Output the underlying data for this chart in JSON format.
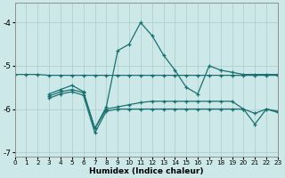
{
  "xlabel": "Humidex (Indice chaleur)",
  "ylabel": "",
  "bg_color": "#cce8e8",
  "grid_color": "#b0d0d0",
  "line_color": "#1a7070",
  "xlim": [
    0,
    23
  ],
  "ylim": [
    -7.1,
    -3.55
  ],
  "yticks": [
    -7,
    -6,
    -5,
    -4
  ],
  "xticks": [
    0,
    1,
    2,
    3,
    4,
    5,
    6,
    7,
    8,
    9,
    10,
    11,
    12,
    13,
    14,
    15,
    16,
    17,
    18,
    19,
    20,
    21,
    22,
    23
  ],
  "series": [
    {
      "x": [
        0,
        1,
        2,
        3,
        4,
        5,
        6,
        7,
        8,
        9,
        10,
        11,
        12,
        13,
        14,
        15,
        16,
        17,
        18,
        19,
        20,
        21,
        22,
        23
      ],
      "y": [
        -5.2,
        -5.2,
        -5.2,
        -5.22,
        -5.22,
        -5.22,
        -5.22,
        -5.22,
        -5.22,
        -5.22,
        -5.22,
        -5.22,
        -5.22,
        -5.22,
        -5.22,
        -5.22,
        -5.22,
        -5.22,
        -5.22,
        -5.22,
        -5.22,
        -5.22,
        -5.22,
        -5.22
      ]
    },
    {
      "x": [
        3,
        4,
        5,
        6,
        7,
        8,
        9,
        10,
        11,
        12,
        13,
        14,
        15,
        16,
        17,
        18,
        19,
        20,
        21,
        22,
        23
      ],
      "y": [
        -5.65,
        -5.55,
        -5.45,
        -5.6,
        -6.45,
        -5.95,
        -4.65,
        -4.5,
        -4.0,
        -4.3,
        -4.75,
        -5.1,
        -5.5,
        -5.65,
        -5.0,
        -5.1,
        -5.15,
        -5.2,
        -5.2,
        -5.2,
        -5.2
      ]
    },
    {
      "x": [
        3,
        4,
        5,
        6,
        7,
        8,
        9,
        10,
        11,
        12,
        13,
        14,
        15,
        16,
        17,
        18,
        19,
        20,
        21,
        22,
        23
      ],
      "y": [
        -5.7,
        -5.6,
        -5.55,
        -5.62,
        -6.45,
        -6.0,
        -5.95,
        -5.9,
        -5.85,
        -5.82,
        -5.82,
        -5.82,
        -5.82,
        -5.82,
        -5.82,
        -5.82,
        -5.82,
        -6.0,
        -6.1,
        -6.0,
        -6.05
      ]
    },
    {
      "x": [
        3,
        4,
        5,
        6,
        7,
        8,
        9,
        10,
        11,
        12,
        13,
        14,
        15,
        16,
        17,
        18,
        19,
        20,
        21,
        22,
        23
      ],
      "y": [
        -5.75,
        -5.65,
        -5.6,
        -5.68,
        -6.55,
        -6.05,
        -6.0,
        -6.0,
        -6.0,
        -6.0,
        -6.0,
        -6.0,
        -6.0,
        -6.0,
        -6.0,
        -6.0,
        -6.0,
        -6.0,
        -6.35,
        -6.0,
        -6.08
      ]
    }
  ]
}
